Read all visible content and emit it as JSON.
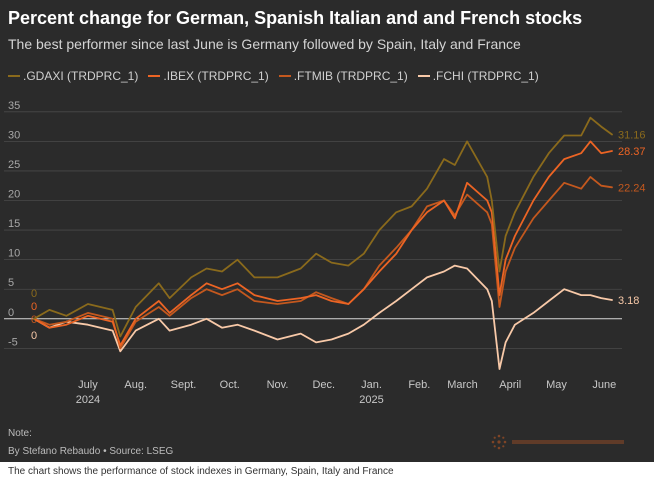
{
  "header": {
    "title": "Percent change for German, Spanish Italian and and French stocks",
    "subtitle": "The best performer since last June is Germany followed by Spain, Italy and France"
  },
  "footer": {
    "note_label": "Note:",
    "byline": "By Stefano Rebaudo • Source: LSEG",
    "caption": "The chart shows the performance of stock indexes in Germany, Spain, Italy and France",
    "logo_icon": "reuters-logo-icon"
  },
  "chart_data": {
    "type": "line",
    "title": "Percent change for German, Spanish Italian and and French stocks",
    "subtitle": "The best performer since last June is Germany followed by Spain, Italy and France",
    "x_range": [
      "2024-06-10",
      "2025-06-20"
    ],
    "x_ticks": [
      {
        "date": "2024-07-15",
        "label": "July",
        "year": "2024"
      },
      {
        "date": "2024-08-15",
        "label": "Aug.",
        "year": ""
      },
      {
        "date": "2024-09-15",
        "label": "Sept.",
        "year": ""
      },
      {
        "date": "2024-10-15",
        "label": "Oct.",
        "year": ""
      },
      {
        "date": "2024-11-15",
        "label": "Nov.",
        "year": ""
      },
      {
        "date": "2024-12-15",
        "label": "Dec.",
        "year": ""
      },
      {
        "date": "2025-01-15",
        "label": "Jan.",
        "year": "2025"
      },
      {
        "date": "2025-02-15",
        "label": "Feb.",
        "year": ""
      },
      {
        "date": "2025-03-15",
        "label": "March",
        "year": ""
      },
      {
        "date": "2025-04-15",
        "label": "April",
        "year": ""
      },
      {
        "date": "2025-05-15",
        "label": "May",
        "year": ""
      },
      {
        "date": "2025-06-15",
        "label": "June",
        "year": ""
      }
    ],
    "y_ticks": [
      -5,
      0,
      5,
      10,
      15,
      20,
      25,
      30,
      35
    ],
    "ylim": [
      -9,
      37
    ],
    "grid": true,
    "legend_position": "top-left",
    "series": [
      {
        "name": ".GDAXI (TRDPRC_1)",
        "color": "#8a6a1c",
        "start_label": "0",
        "end_label": "31.16",
        "points": [
          [
            "2024-06-10",
            0
          ],
          [
            "2024-06-20",
            1.5
          ],
          [
            "2024-07-01",
            0.5
          ],
          [
            "2024-07-15",
            2.5
          ],
          [
            "2024-07-31",
            1.5
          ],
          [
            "2024-08-05",
            -3
          ],
          [
            "2024-08-15",
            2
          ],
          [
            "2024-08-30",
            6
          ],
          [
            "2024-09-06",
            3.5
          ],
          [
            "2024-09-20",
            7
          ],
          [
            "2024-09-30",
            8.5
          ],
          [
            "2024-10-10",
            8
          ],
          [
            "2024-10-20",
            10
          ],
          [
            "2024-10-31",
            7
          ],
          [
            "2024-11-15",
            7
          ],
          [
            "2024-11-30",
            8.5
          ],
          [
            "2024-12-10",
            11
          ],
          [
            "2024-12-20",
            9.5
          ],
          [
            "2024-12-31",
            9
          ],
          [
            "2025-01-10",
            11
          ],
          [
            "2025-01-20",
            15
          ],
          [
            "2025-01-31",
            18
          ],
          [
            "2025-02-10",
            19
          ],
          [
            "2025-02-20",
            22
          ],
          [
            "2025-03-03",
            27
          ],
          [
            "2025-03-10",
            26
          ],
          [
            "2025-03-18",
            30
          ],
          [
            "2025-03-31",
            24
          ],
          [
            "2025-04-03",
            20
          ],
          [
            "2025-04-08",
            8
          ],
          [
            "2025-04-12",
            14
          ],
          [
            "2025-04-18",
            18
          ],
          [
            "2025-04-30",
            24
          ],
          [
            "2025-05-10",
            28
          ],
          [
            "2025-05-20",
            31
          ],
          [
            "2025-05-31",
            31
          ],
          [
            "2025-06-06",
            34
          ],
          [
            "2025-06-13",
            32.5
          ],
          [
            "2025-06-20",
            31.16
          ]
        ]
      },
      {
        "name": ".IBEX (TRDPRC_1)",
        "color": "#ec6424",
        "start_label": "0",
        "end_label": "28.37",
        "points": [
          [
            "2024-06-10",
            0
          ],
          [
            "2024-06-20",
            -1.5
          ],
          [
            "2024-07-01",
            -1
          ],
          [
            "2024-07-15",
            0.5
          ],
          [
            "2024-07-31",
            -0.5
          ],
          [
            "2024-08-05",
            -4.5
          ],
          [
            "2024-08-15",
            0
          ],
          [
            "2024-08-30",
            3
          ],
          [
            "2024-09-06",
            1
          ],
          [
            "2024-09-20",
            4
          ],
          [
            "2024-09-30",
            6
          ],
          [
            "2024-10-10",
            5
          ],
          [
            "2024-10-20",
            6
          ],
          [
            "2024-10-31",
            4
          ],
          [
            "2024-11-15",
            3
          ],
          [
            "2024-11-30",
            3.5
          ],
          [
            "2024-12-10",
            4
          ],
          [
            "2024-12-20",
            3
          ],
          [
            "2024-12-31",
            2.5
          ],
          [
            "2025-01-10",
            5
          ],
          [
            "2025-01-20",
            8
          ],
          [
            "2025-01-31",
            11
          ],
          [
            "2025-02-10",
            15
          ],
          [
            "2025-02-20",
            18
          ],
          [
            "2025-03-03",
            20
          ],
          [
            "2025-03-10",
            17
          ],
          [
            "2025-03-18",
            23
          ],
          [
            "2025-03-31",
            20
          ],
          [
            "2025-04-03",
            18
          ],
          [
            "2025-04-08",
            4
          ],
          [
            "2025-04-12",
            10
          ],
          [
            "2025-04-18",
            14
          ],
          [
            "2025-04-30",
            20
          ],
          [
            "2025-05-10",
            24
          ],
          [
            "2025-05-20",
            27
          ],
          [
            "2025-05-31",
            28
          ],
          [
            "2025-06-06",
            30
          ],
          [
            "2025-06-13",
            28
          ],
          [
            "2025-06-20",
            28.37
          ]
        ]
      },
      {
        "name": ".FTMIB (TRDPRC_1)",
        "color": "#c4581e",
        "start_label": "0",
        "end_label": "22.24",
        "points": [
          [
            "2024-06-10",
            0
          ],
          [
            "2024-06-20",
            -1
          ],
          [
            "2024-07-01",
            -0.5
          ],
          [
            "2024-07-15",
            1
          ],
          [
            "2024-07-31",
            0
          ],
          [
            "2024-08-05",
            -5
          ],
          [
            "2024-08-15",
            -0.5
          ],
          [
            "2024-08-30",
            2
          ],
          [
            "2024-09-06",
            0.5
          ],
          [
            "2024-09-20",
            3.5
          ],
          [
            "2024-09-30",
            5
          ],
          [
            "2024-10-10",
            4
          ],
          [
            "2024-10-20",
            5
          ],
          [
            "2024-10-31",
            3
          ],
          [
            "2024-11-15",
            2.5
          ],
          [
            "2024-11-30",
            3
          ],
          [
            "2024-12-10",
            4.5
          ],
          [
            "2024-12-20",
            3.5
          ],
          [
            "2024-12-31",
            2.5
          ],
          [
            "2025-01-10",
            5
          ],
          [
            "2025-01-20",
            9
          ],
          [
            "2025-01-31",
            12
          ],
          [
            "2025-02-10",
            15
          ],
          [
            "2025-02-20",
            19
          ],
          [
            "2025-03-03",
            20
          ],
          [
            "2025-03-10",
            17.5
          ],
          [
            "2025-03-18",
            21
          ],
          [
            "2025-03-31",
            18
          ],
          [
            "2025-04-03",
            16
          ],
          [
            "2025-04-08",
            2
          ],
          [
            "2025-04-12",
            8
          ],
          [
            "2025-04-18",
            12
          ],
          [
            "2025-04-30",
            17
          ],
          [
            "2025-05-10",
            20
          ],
          [
            "2025-05-20",
            23
          ],
          [
            "2025-05-31",
            22
          ],
          [
            "2025-06-06",
            24
          ],
          [
            "2025-06-13",
            22.5
          ],
          [
            "2025-06-20",
            22.24
          ]
        ]
      },
      {
        "name": ".FCHI (TRDPRC_1)",
        "color": "#f8c9a8",
        "start_label": "0",
        "end_label": "3.18",
        "points": [
          [
            "2024-06-10",
            0
          ],
          [
            "2024-06-20",
            -1.5
          ],
          [
            "2024-07-01",
            -0.5
          ],
          [
            "2024-07-15",
            -1
          ],
          [
            "2024-07-31",
            -2
          ],
          [
            "2024-08-05",
            -5.5
          ],
          [
            "2024-08-15",
            -2
          ],
          [
            "2024-08-30",
            0
          ],
          [
            "2024-09-06",
            -2
          ],
          [
            "2024-09-20",
            -1
          ],
          [
            "2024-09-30",
            0
          ],
          [
            "2024-10-10",
            -1.5
          ],
          [
            "2024-10-20",
            -1
          ],
          [
            "2024-10-31",
            -2
          ],
          [
            "2024-11-15",
            -3.5
          ],
          [
            "2024-11-30",
            -2.5
          ],
          [
            "2024-12-10",
            -4
          ],
          [
            "2024-12-20",
            -3.5
          ],
          [
            "2024-12-31",
            -2.5
          ],
          [
            "2025-01-10",
            -1
          ],
          [
            "2025-01-20",
            1
          ],
          [
            "2025-01-31",
            3
          ],
          [
            "2025-02-10",
            5
          ],
          [
            "2025-02-20",
            7
          ],
          [
            "2025-03-03",
            8
          ],
          [
            "2025-03-10",
            9
          ],
          [
            "2025-03-18",
            8.5
          ],
          [
            "2025-03-31",
            5
          ],
          [
            "2025-04-03",
            3
          ],
          [
            "2025-04-08",
            -8.5
          ],
          [
            "2025-04-12",
            -4
          ],
          [
            "2025-04-18",
            -1
          ],
          [
            "2025-04-30",
            1
          ],
          [
            "2025-05-10",
            3
          ],
          [
            "2025-05-20",
            5
          ],
          [
            "2025-05-31",
            4
          ],
          [
            "2025-06-06",
            4
          ],
          [
            "2025-06-13",
            3.5
          ],
          [
            "2025-06-20",
            3.18
          ]
        ]
      }
    ]
  }
}
